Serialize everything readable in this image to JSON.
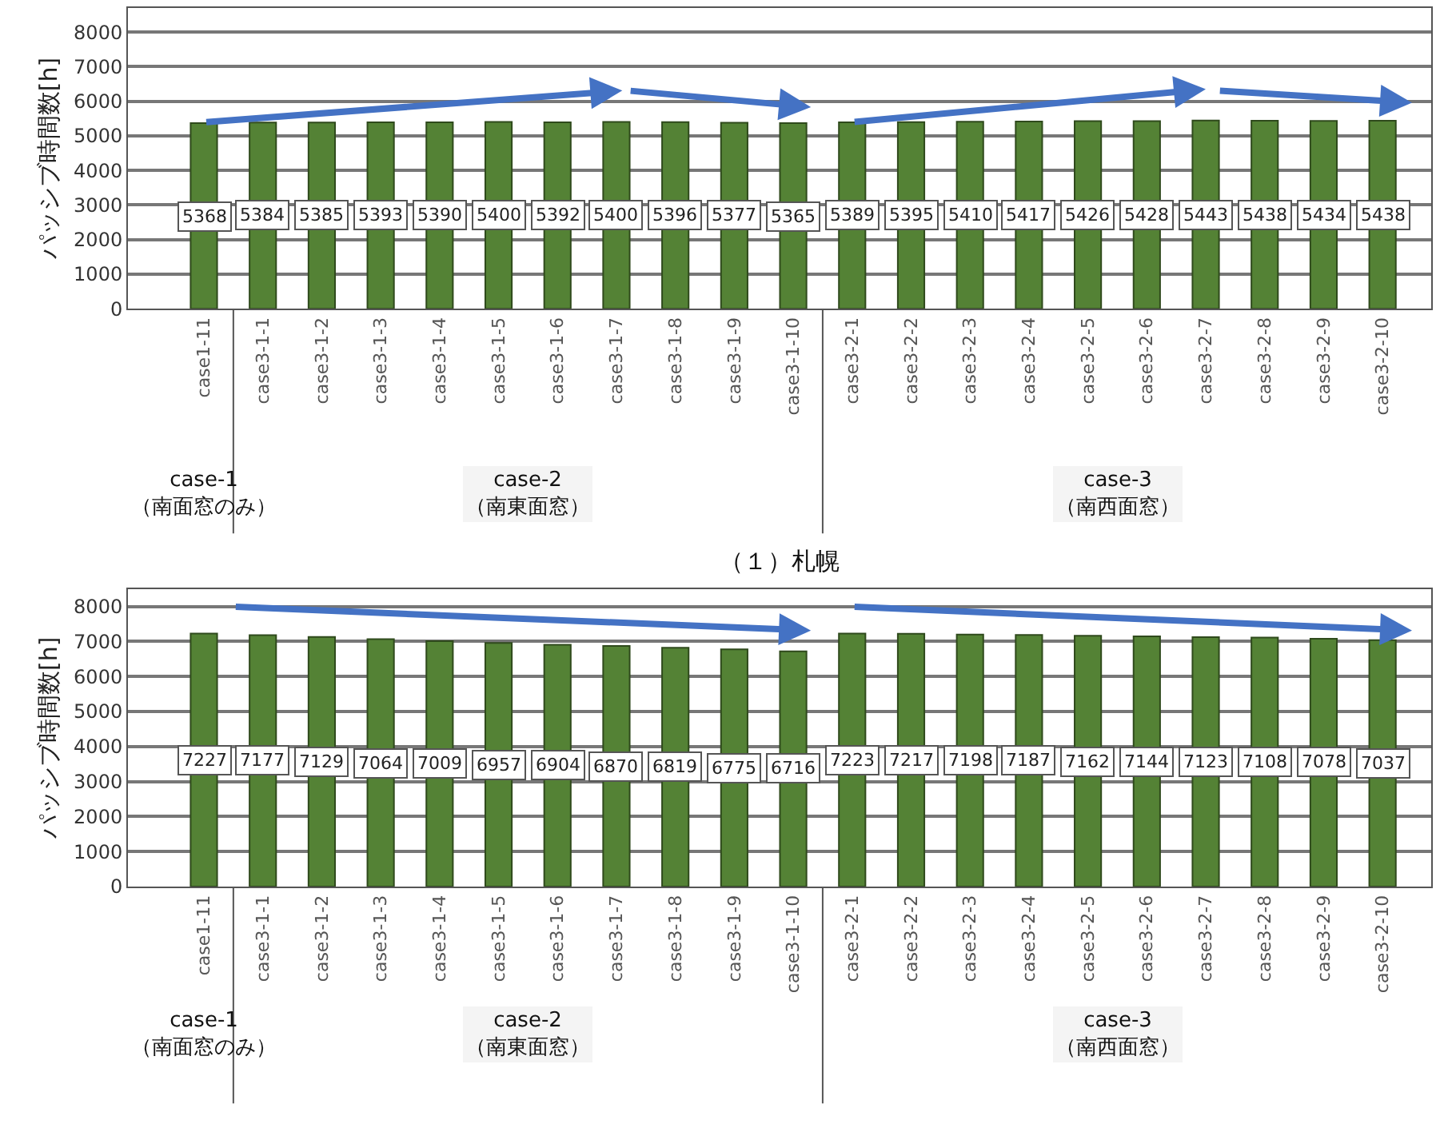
{
  "chart_data": [
    {
      "type": "bar",
      "title": "（１）札幌",
      "ylabel": "パッシブ時間数[h]",
      "categories": [
        "case1-11",
        "case3-1-1",
        "case3-1-2",
        "case3-1-3",
        "case3-1-4",
        "case3-1-5",
        "case3-1-6",
        "case3-1-7",
        "case3-1-8",
        "case3-1-9",
        "case3-1-10",
        "case3-2-1",
        "case3-2-2",
        "case3-2-3",
        "case3-2-4",
        "case3-2-5",
        "case3-2-6",
        "case3-2-7",
        "case3-2-8",
        "case3-2-9",
        "case3-2-10"
      ],
      "values": [
        5368,
        5384,
        5385,
        5393,
        5390,
        5400,
        5392,
        5400,
        5396,
        5377,
        5365,
        5389,
        5395,
        5410,
        5417,
        5426,
        5428,
        5443,
        5438,
        5434,
        5438
      ],
      "color": "#548235",
      "data_labels": true,
      "ylim": [
        0,
        8700
      ],
      "yticks": [
        0,
        1000,
        2000,
        3000,
        4000,
        5000,
        6000,
        7000,
        8000
      ],
      "grid": "y",
      "annotations": [
        "case-1\n（南面窓のみ）",
        "case-2\n（南東面窓）",
        "case-3\n（南西面窓）"
      ]
    },
    {
      "type": "bar",
      "ylabel": "パッシブ時間数[h]",
      "categories": [
        "case1-11",
        "case3-1-1",
        "case3-1-2",
        "case3-1-3",
        "case3-1-4",
        "case3-1-5",
        "case3-1-6",
        "case3-1-7",
        "case3-1-8",
        "case3-1-9",
        "case3-1-10",
        "case3-2-1",
        "case3-2-2",
        "case3-2-3",
        "case3-2-4",
        "case3-2-5",
        "case3-2-6",
        "case3-2-7",
        "case3-2-8",
        "case3-2-9",
        "case3-2-10"
      ],
      "values": [
        7227,
        7177,
        7129,
        7064,
        7009,
        6957,
        6904,
        6870,
        6819,
        6775,
        6716,
        7223,
        7217,
        7198,
        7187,
        7162,
        7144,
        7123,
        7108,
        7078,
        7037
      ],
      "color": "#548235",
      "data_labels": true,
      "ylim": [
        0,
        8500
      ],
      "yticks": [
        0,
        1000,
        2000,
        3000,
        4000,
        5000,
        6000,
        7000,
        8000
      ],
      "grid": "y",
      "annotations": [
        "case-1\n（南面窓のみ）",
        "case-2\n（南東面窓）",
        "case-3\n（南西面窓）"
      ]
    }
  ]
}
